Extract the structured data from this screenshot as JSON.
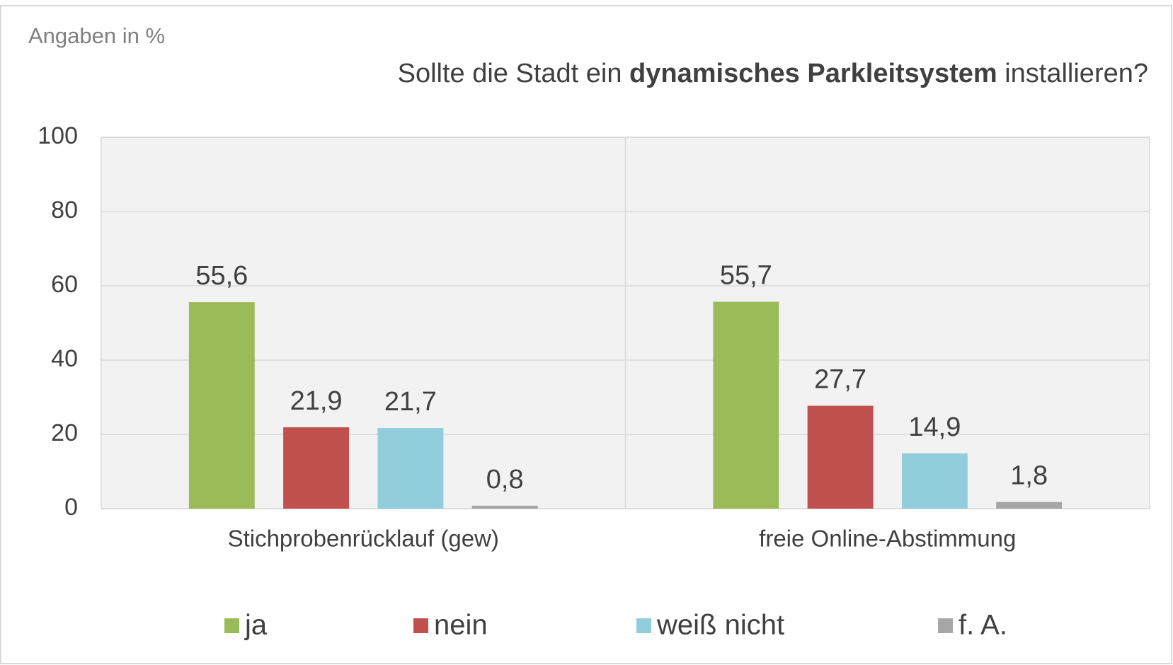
{
  "chart_data": {
    "type": "bar",
    "subtitle": "Angaben in %",
    "title_parts": [
      "Sollte die Stadt ein ",
      "dynamisches Parkleitsystem",
      " installieren?"
    ],
    "categories": [
      "Stichprobenrücklauf (gew)",
      "freie Online-Abstimmung"
    ],
    "series": [
      {
        "name": "ja",
        "color": "#9bbb59",
        "values": [
          55.6,
          55.7
        ],
        "value_labels": [
          "55,6",
          "55,7"
        ]
      },
      {
        "name": "nein",
        "color": "#c0504d",
        "values": [
          21.9,
          27.7
        ],
        "value_labels": [
          "21,9",
          "27,7"
        ]
      },
      {
        "name": "weiß nicht",
        "color": "#92cddc",
        "values": [
          21.7,
          14.9
        ],
        "value_labels": [
          "21,7",
          "14,9"
        ]
      },
      {
        "name": "f. A.",
        "color": "#a6a6a6",
        "values": [
          0.8,
          1.8
        ],
        "value_labels": [
          "0,8",
          "1,8"
        ]
      }
    ],
    "ylim": [
      0,
      100
    ],
    "yticks": [
      0,
      20,
      40,
      60,
      80,
      100
    ],
    "grid": true
  }
}
